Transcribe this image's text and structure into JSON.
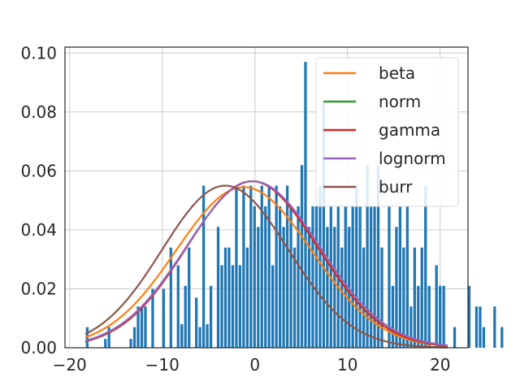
{
  "chart_data": {
    "type": "bar",
    "title": "",
    "xlabel": "",
    "ylabel": "",
    "xlim": [
      -20.5,
      23
    ],
    "ylim": [
      0,
      0.102
    ],
    "xticks": [
      -20,
      -10,
      0,
      10,
      20
    ],
    "xtick_labels": [
      "−20",
      "−10",
      "0",
      "10",
      "20"
    ],
    "yticks": [
      0.0,
      0.02,
      0.04,
      0.06,
      0.08,
      0.1
    ],
    "ytick_labels": [
      "0.00",
      "0.02",
      "0.04",
      "0.06",
      "0.08",
      "0.10"
    ],
    "grid": true,
    "legend_position": "top-right",
    "histogram": {
      "bin_start": -18.3,
      "bin_width": 0.3927,
      "color": "#1f77b4",
      "heights": [
        0.007,
        0.0,
        0.0,
        0.0,
        0.0,
        0.003,
        0.007,
        0.0,
        0.0,
        0.0,
        0.0,
        0.0,
        0.003,
        0.007,
        0.014,
        0.014,
        0.014,
        0.0,
        0.02,
        0.0,
        0.0,
        0.02,
        0.0,
        0.034,
        0.0,
        0.028,
        0.008,
        0.021,
        0.034,
        0.0,
        0.017,
        0.007,
        0.055,
        0.008,
        0.021,
        0.0,
        0.041,
        0.028,
        0.034,
        0.034,
        0.028,
        0.055,
        0.028,
        0.055,
        0.034,
        0.055,
        0.048,
        0.041,
        0.055,
        0.048,
        0.055,
        0.028,
        0.055,
        0.048,
        0.041,
        0.055,
        0.048,
        0.034,
        0.048,
        0.062,
        0.097,
        0.041,
        0.048,
        0.048,
        0.055,
        0.083,
        0.041,
        0.048,
        0.041,
        0.048,
        0.034,
        0.048,
        0.041,
        0.048,
        0.055,
        0.048,
        0.034,
        0.062,
        0.048,
        0.048,
        0.062,
        0.034,
        0.0,
        0.048,
        0.021,
        0.041,
        0.048,
        0.034,
        0.048,
        0.014,
        0.034,
        0.021,
        0.034,
        0.055,
        0.021,
        0.0,
        0.028,
        0.021,
        0.021,
        0.0,
        0.0,
        0.007,
        0.0,
        0.0,
        0.0,
        0.021,
        0.0,
        0.014,
        0.014,
        0.007,
        0.0,
        0.0,
        0.014,
        0.0,
        0.007,
        0.0,
        0.0,
        0.0,
        0.0,
        0.0,
        0.0,
        0.0,
        0.0,
        0.003,
        0.0,
        0.0,
        0.0,
        0.0,
        0.0,
        0.0,
        0.0,
        0.0,
        0.0,
        0.007,
        0.0,
        0.007,
        0.0,
        0.007,
        0.007,
        0.0
      ]
    },
    "x_range": [
      -18.3,
      20.8
    ],
    "series": [
      {
        "name": "beta",
        "color": "#ff7f0e",
        "mu": -1.2,
        "sigma": 7.3,
        "peak": 0.0545
      },
      {
        "name": "norm",
        "color": "#2ca02c",
        "mu": -0.3,
        "sigma": 7.05,
        "peak": 0.0565
      },
      {
        "name": "gamma",
        "color": "#d62728",
        "mu": -0.3,
        "sigma": 7.05,
        "peak": 0.0565
      },
      {
        "name": "lognorm",
        "color": "#9467bd",
        "mu": -0.2,
        "sigma": 7.2,
        "peak": 0.0565
      },
      {
        "name": "burr",
        "color": "#8c564b",
        "mu": -3.2,
        "sigma": 6.8,
        "peak": 0.055
      }
    ]
  }
}
